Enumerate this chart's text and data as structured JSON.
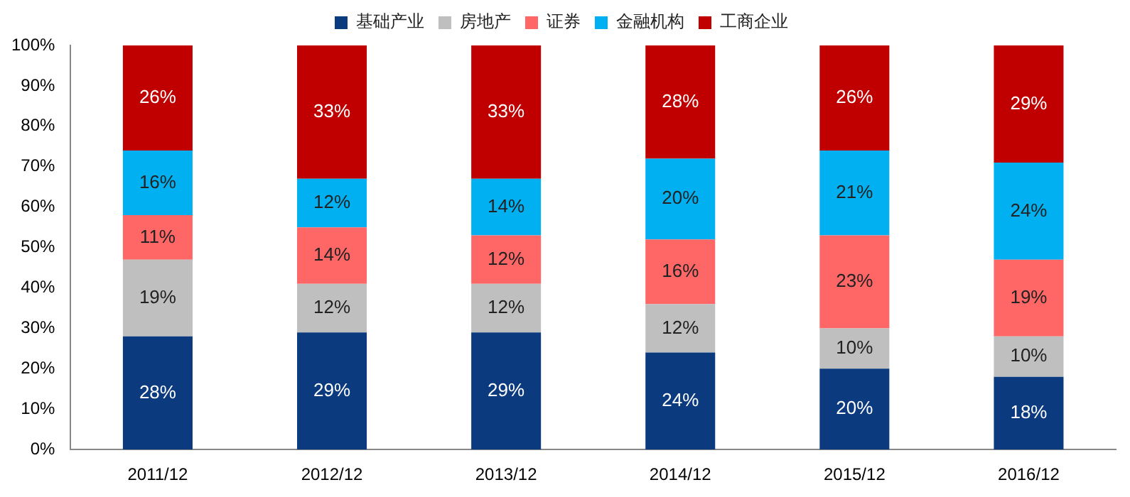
{
  "chart_data": {
    "type": "bar",
    "stacked": true,
    "categories": [
      "2011/12",
      "2012/12",
      "2013/12",
      "2014/12",
      "2015/12",
      "2016/12"
    ],
    "series": [
      {
        "name": "基础产业",
        "color": "#0b3a7e",
        "values": [
          28,
          29,
          29,
          24,
          20,
          18
        ],
        "value_labels": [
          "28%",
          "29%",
          "29%",
          "24%",
          "20%",
          "18%"
        ]
      },
      {
        "name": "房地产",
        "color": "#bfbfbf",
        "values": [
          19,
          12,
          12,
          12,
          10,
          10
        ],
        "value_labels": [
          "19%",
          "12%",
          "12%",
          "12%",
          "10%",
          "10%"
        ]
      },
      {
        "name": "证券",
        "color": "#ff6666",
        "values": [
          11,
          14,
          12,
          16,
          23,
          19
        ],
        "value_labels": [
          "11%",
          "14%",
          "12%",
          "16%",
          "23%",
          "19%"
        ]
      },
      {
        "name": "金融机构",
        "color": "#00b0f0",
        "values": [
          16,
          12,
          14,
          20,
          21,
          24
        ],
        "value_labels": [
          "16%",
          "12%",
          "14%",
          "20%",
          "21%",
          "24%"
        ]
      },
      {
        "name": "工商企业",
        "color": "#c00000",
        "values": [
          26,
          33,
          33,
          28,
          26,
          29
        ],
        "value_labels": [
          "26%",
          "33%",
          "33%",
          "28%",
          "26%",
          "29%"
        ]
      }
    ],
    "ylim": [
      0,
      100
    ],
    "yticks": [
      {
        "value": 0,
        "label": "0%"
      },
      {
        "value": 10,
        "label": "10%"
      },
      {
        "value": 20,
        "label": "20%"
      },
      {
        "value": 30,
        "label": "30%"
      },
      {
        "value": 40,
        "label": "40%"
      },
      {
        "value": 50,
        "label": "50%"
      },
      {
        "value": 60,
        "label": "60%"
      },
      {
        "value": 70,
        "label": "70%"
      },
      {
        "value": 80,
        "label": "80%"
      },
      {
        "value": 90,
        "label": "90%"
      },
      {
        "value": 100,
        "label": "100%"
      }
    ],
    "grid": false,
    "legend": "top"
  }
}
